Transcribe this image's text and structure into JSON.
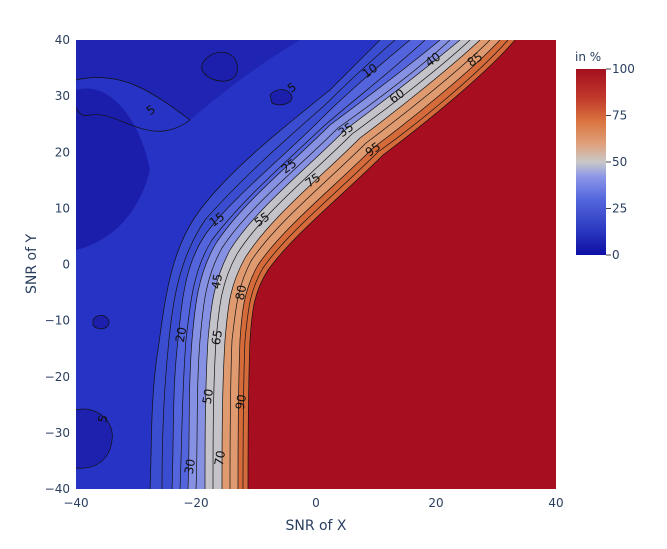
{
  "chart_data": {
    "type": "contour",
    "xlabel": "SNR of X",
    "ylabel": "SNR of Y",
    "xlim": [
      -40,
      40
    ],
    "ylim": [
      -40,
      40
    ],
    "x_ticks": [
      "−40",
      "−20",
      "0",
      "20",
      "40"
    ],
    "y_ticks": [
      "−40",
      "−30",
      "−20",
      "−10",
      "0",
      "10",
      "20",
      "30",
      "40"
    ],
    "colorbar": {
      "title": "in %",
      "range": [
        0,
        100
      ],
      "ticks": [
        "0",
        "25",
        "50",
        "75",
        "100"
      ],
      "colorscale": [
        "#0d0ea5",
        "#2f3ec4",
        "#5567dd",
        "#8b96e8",
        "#c8c8c8",
        "#e0a07a",
        "#d9743e",
        "#c0372a",
        "#a50f20"
      ]
    },
    "contour_levels": [
      {
        "value": 5,
        "label": "5"
      },
      {
        "value": 10,
        "label": "10"
      },
      {
        "value": 15,
        "label": "15"
      },
      {
        "value": 20,
        "label": "20"
      },
      {
        "value": 25,
        "label": "25"
      },
      {
        "value": 30,
        "label": "30"
      },
      {
        "value": 35,
        "label": "35"
      },
      {
        "value": 40,
        "label": "40"
      },
      {
        "value": 45,
        "label": "45"
      },
      {
        "value": 50,
        "label": "50"
      },
      {
        "value": 55,
        "label": "55"
      },
      {
        "value": 60,
        "label": "60"
      },
      {
        "value": 65,
        "label": "65"
      },
      {
        "value": 70,
        "label": "70"
      },
      {
        "value": 75,
        "label": "75"
      },
      {
        "value": 80,
        "label": "80"
      },
      {
        "value": 85,
        "label": "85"
      },
      {
        "value": 90,
        "label": "90"
      },
      {
        "value": 95,
        "label": "95"
      }
    ],
    "contour_labels": [
      {
        "text": "5",
        "x": -27.5,
        "y": 27.5
      },
      {
        "text": "5",
        "x": -4,
        "y": 31.5
      },
      {
        "text": "5",
        "x": -35.5,
        "y": -27.5
      },
      {
        "text": "10",
        "x": 9,
        "y": 34.5
      },
      {
        "text": "40",
        "x": 19.5,
        "y": 36.5
      },
      {
        "text": "85",
        "x": 26.5,
        "y": 36.5
      },
      {
        "text": "35",
        "x": 5,
        "y": 24
      },
      {
        "text": "60",
        "x": 13.5,
        "y": 30
      },
      {
        "text": "95",
        "x": 9.5,
        "y": 20.5
      },
      {
        "text": "25",
        "x": -4.5,
        "y": 17.5
      },
      {
        "text": "75",
        "x": -0.5,
        "y": 15
      },
      {
        "text": "15",
        "x": -16.5,
        "y": 8
      },
      {
        "text": "55",
        "x": -9,
        "y": 8
      },
      {
        "text": "45",
        "x": -16.5,
        "y": -3
      },
      {
        "text": "80",
        "x": -12.5,
        "y": -5
      },
      {
        "text": "20",
        "x": -22.5,
        "y": -12.5
      },
      {
        "text": "65",
        "x": -16.5,
        "y": -13
      },
      {
        "text": "50",
        "x": -18,
        "y": -23.5
      },
      {
        "text": "90",
        "x": -12.5,
        "y": -24.5
      },
      {
        "text": "70",
        "x": -16,
        "y": -34.5
      },
      {
        "text": "30",
        "x": -21,
        "y": -36
      }
    ]
  }
}
